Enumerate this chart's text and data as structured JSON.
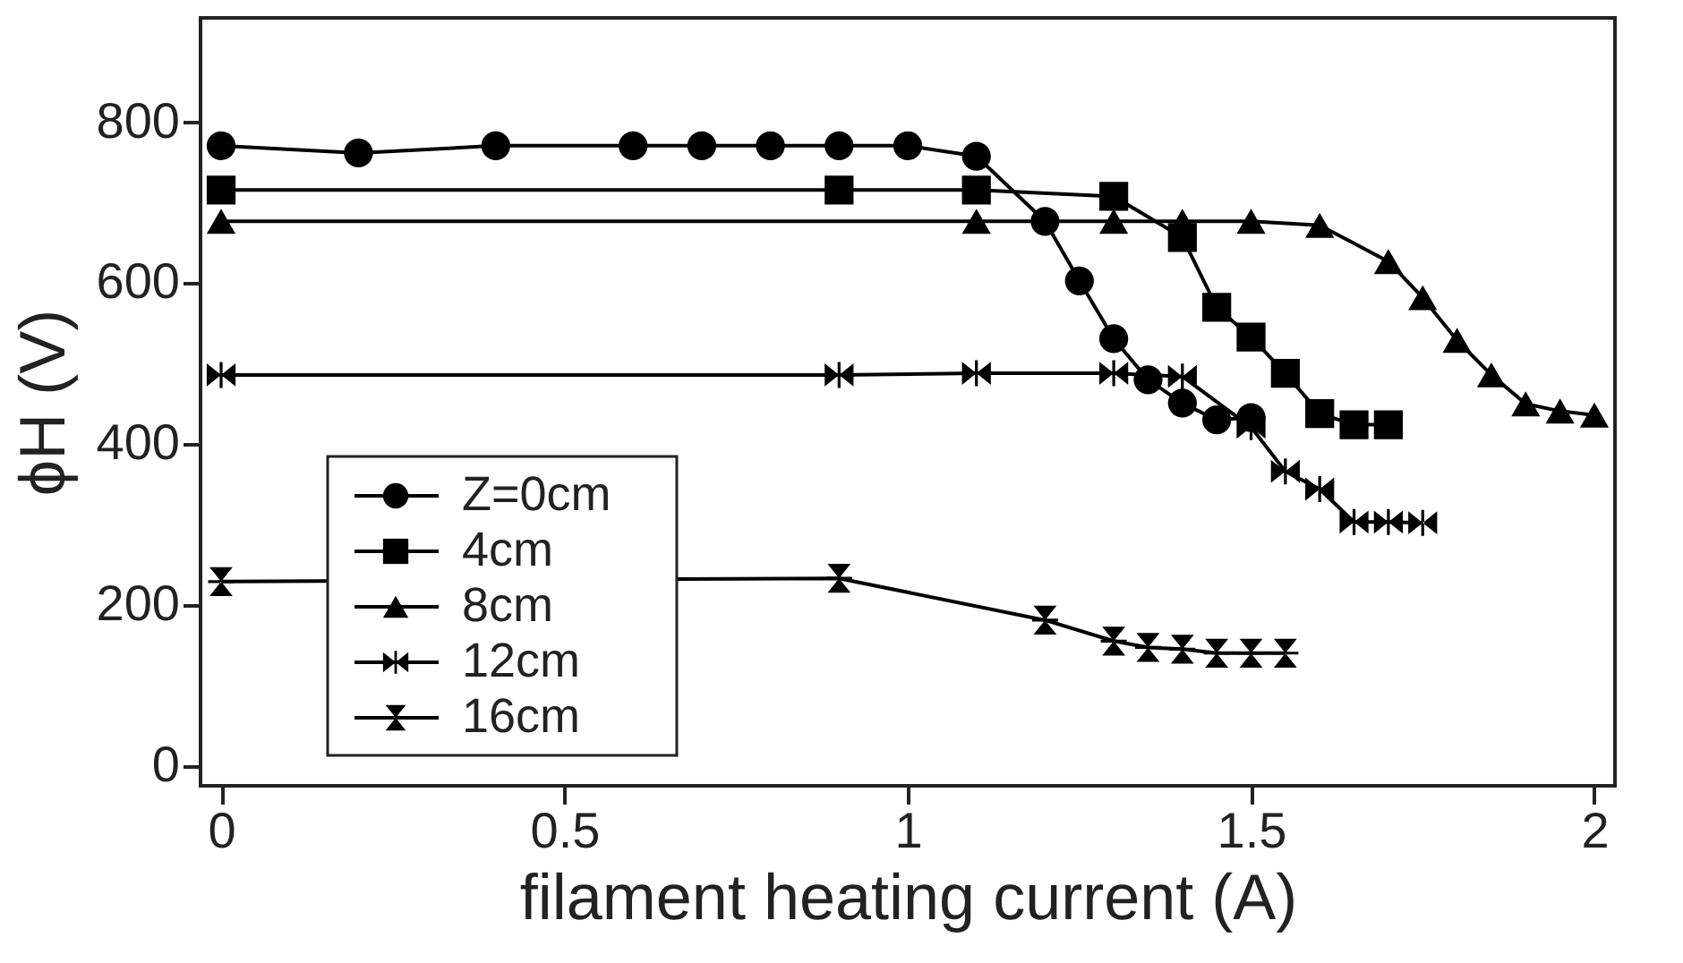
{
  "chart_data": {
    "type": "line",
    "xlabel": "filament heating current (A)",
    "ylabel": "ϕH (V)",
    "xlim": [
      -0.03,
      2.03
    ],
    "ylim": [
      -25,
      930
    ],
    "xticks": [
      0,
      0.5,
      1,
      1.5,
      2
    ],
    "yticks": [
      0,
      200,
      400,
      600,
      800
    ],
    "grid": false,
    "legend": "bottom left",
    "line_style": "solid",
    "series": [
      {
        "name": "Z=0cm",
        "color": "#000000",
        "marker": "circle",
        "x": [
          0,
          0.2,
          0.4,
          0.6,
          0.7,
          0.8,
          0.9,
          1.0,
          1.1,
          1.2,
          1.25,
          1.3,
          1.35,
          1.4,
          1.45,
          1.5
        ],
        "values": [
          771,
          762,
          771,
          771,
          771,
          771,
          771,
          771,
          758,
          677,
          603,
          531,
          480,
          451,
          430,
          433
        ]
      },
      {
        "name": "4cm",
        "color": "#000000",
        "marker": "square",
        "x": [
          0,
          0.9,
          1.1,
          1.3,
          1.4,
          1.45,
          1.5,
          1.55,
          1.6,
          1.65,
          1.7
        ],
        "values": [
          716,
          716,
          716,
          708,
          657,
          570,
          533,
          488,
          438,
          424,
          424
        ]
      },
      {
        "name": "8cm",
        "color": "#000000",
        "marker": "triangle",
        "x": [
          0,
          1.1,
          1.3,
          1.4,
          1.5,
          1.6,
          1.7,
          1.75,
          1.8,
          1.85,
          1.9,
          1.95,
          2.0
        ],
        "values": [
          677,
          677,
          677,
          677,
          677,
          672,
          627,
          582,
          529,
          486,
          450,
          441,
          436
        ]
      },
      {
        "name": "12cm",
        "color": "#000000",
        "marker": "star",
        "x": [
          0,
          0.9,
          1.1,
          1.3,
          1.4,
          1.5,
          1.55,
          1.6,
          1.65,
          1.7,
          1.75
        ],
        "values": [
          486,
          486,
          488,
          488,
          484,
          421,
          366,
          344,
          303,
          303,
          302
        ]
      },
      {
        "name": "16cm",
        "color": "#000000",
        "marker": "star",
        "x": [
          0,
          0.9,
          1.2,
          1.3,
          1.35,
          1.4,
          1.45,
          1.5,
          1.55
        ],
        "values": [
          229,
          233,
          181,
          155,
          147,
          145,
          140,
          140,
          140
        ]
      }
    ]
  }
}
